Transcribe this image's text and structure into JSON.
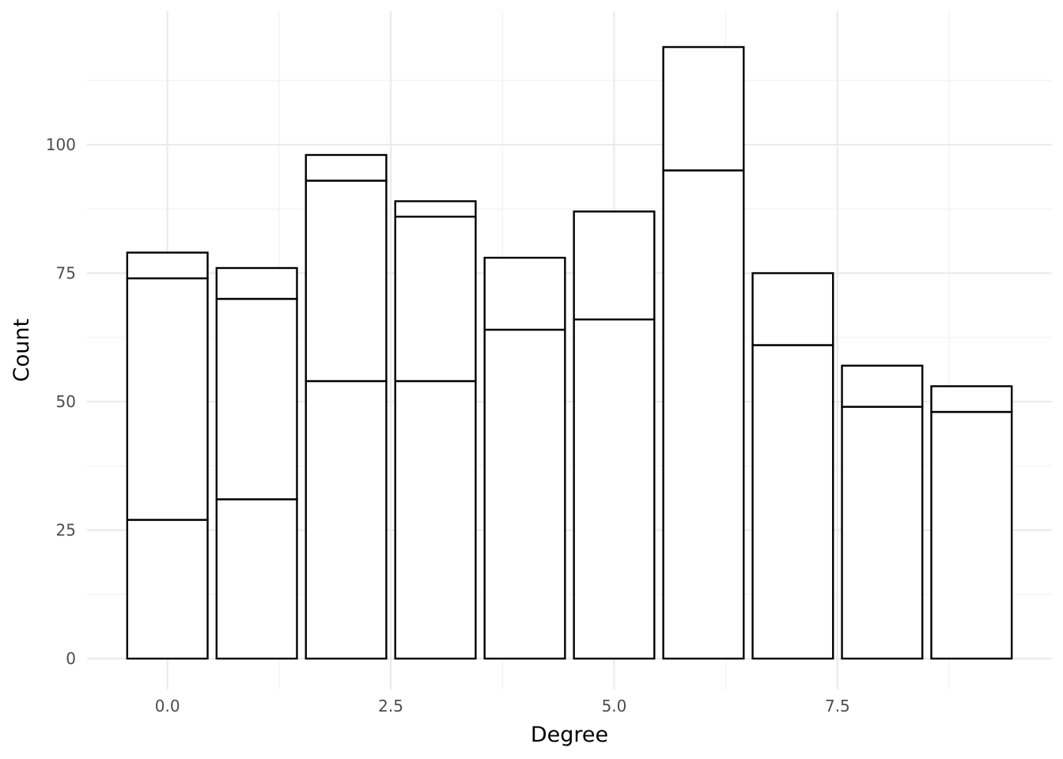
{
  "chart_data": {
    "type": "bar",
    "stacked": true,
    "xlabel": "Degree",
    "ylabel": "Count",
    "x": [
      0,
      1,
      2,
      3,
      4,
      5,
      6,
      7,
      8,
      9
    ],
    "stack_boundaries": [
      [
        27,
        74,
        79
      ],
      [
        31,
        70,
        76
      ],
      [
        54,
        93,
        98
      ],
      [
        54,
        86,
        89
      ],
      [
        64,
        78
      ],
      [
        66,
        87
      ],
      [
        95,
        119
      ],
      [
        61,
        75
      ],
      [
        49,
        57
      ],
      [
        48,
        53
      ]
    ],
    "totals": [
      79,
      76,
      98,
      89,
      78,
      87,
      119,
      75,
      57,
      53
    ],
    "xlim": [
      -0.9,
      9.9
    ],
    "ylim": [
      -6,
      126
    ],
    "x_ticks": [
      0,
      2.5,
      5,
      7.5
    ],
    "x_tick_labels": [
      "0.0",
      "2.5",
      "5.0",
      "7.5"
    ],
    "x_minor_ticks": [
      1.25,
      3.75,
      6.25,
      8.75
    ],
    "y_ticks": [
      0,
      25,
      50,
      75,
      100
    ],
    "y_tick_labels": [
      "0",
      "25",
      "50",
      "75",
      "100"
    ],
    "y_minor_ticks": [
      12.5,
      37.5,
      62.5,
      87.5,
      112.5
    ],
    "bar_fill": "#ffffff",
    "bar_outline": "#000000",
    "grid": true,
    "legend": "none"
  }
}
